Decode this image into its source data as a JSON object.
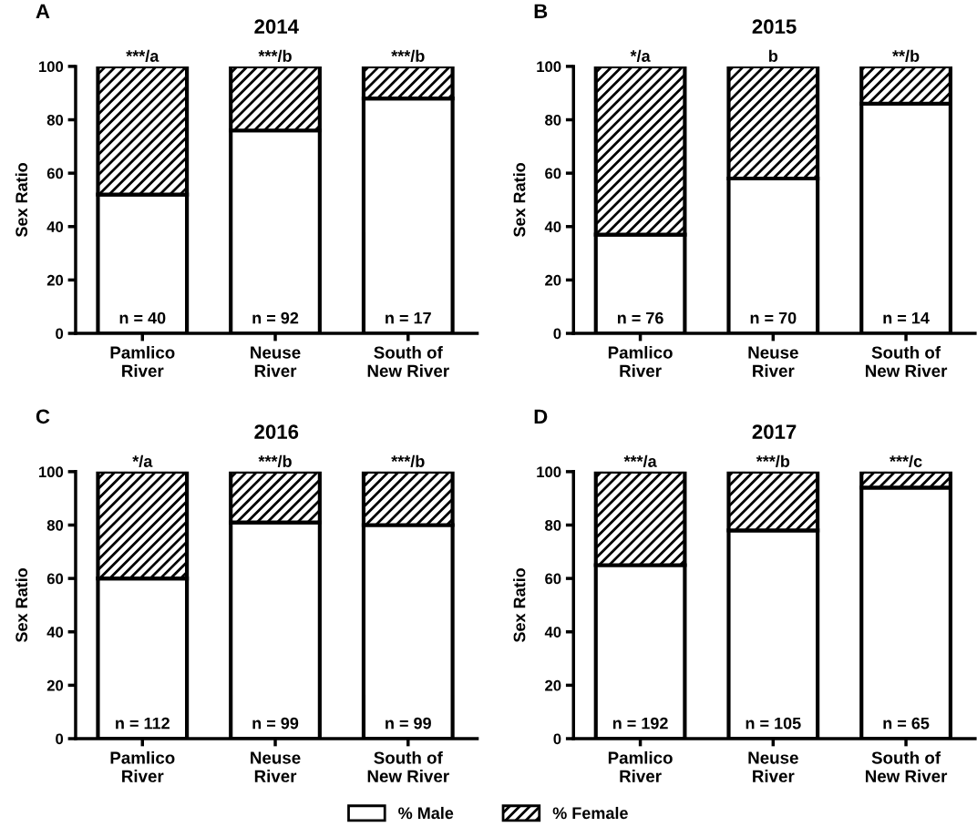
{
  "chart_data": [
    {
      "type": "bar",
      "stacked": true,
      "title": "2014",
      "ylabel": "Sex Ratio",
      "categories": [
        "Pamlico\nRiver",
        "Neuse\nRiver",
        "South of\nNew River"
      ],
      "ylim": [
        0,
        100
      ],
      "yticks": [
        0,
        20,
        40,
        60,
        80,
        100
      ],
      "grid": false,
      "series": [
        {
          "color": "#ffffff",
          "values": [
            52,
            76,
            88
          ]
        },
        {
          "color": "#000000",
          "values": [
            48,
            24,
            12
          ]
        }
      ],
      "annotations": [
        "A",
        {
          "text": "***/a",
          "x": "Pamlico\nRiver",
          "y": 100
        },
        {
          "text": "***/b",
          "x": "Neuse\nRiver",
          "y": 100
        },
        {
          "text": "***/b",
          "x": "South of\nNew River",
          "y": 100
        },
        {
          "text": "n = 40",
          "x": "Pamlico\nRiver",
          "y": 0
        },
        {
          "text": "n = 92",
          "x": "Neuse\nRiver",
          "y": 0
        },
        {
          "text": "n = 17",
          "x": "South of\nNew River",
          "y": 0
        }
      ]
    },
    {
      "type": "bar",
      "stacked": true,
      "title": "2015",
      "ylabel": "Sex Ratio",
      "categories": [
        "Pamlico\nRiver",
        "Neuse\nRiver",
        "South of\nNew River"
      ],
      "ylim": [
        0,
        100
      ],
      "yticks": [
        0,
        20,
        40,
        60,
        80,
        100
      ],
      "grid": false,
      "series": [
        {
          "color": "#ffffff",
          "values": [
            37,
            58,
            86
          ]
        },
        {
          "color": "#000000",
          "values": [
            63,
            42,
            14
          ]
        }
      ],
      "annotations": [
        "B",
        {
          "text": "*/a",
          "x": "Pamlico\nRiver",
          "y": 100
        },
        {
          "text": "b",
          "x": "Neuse\nRiver",
          "y": 100
        },
        {
          "text": "**/b",
          "x": "South of\nNew River",
          "y": 100
        },
        {
          "text": "n = 76",
          "x": "Pamlico\nRiver",
          "y": 0
        },
        {
          "text": "n = 70",
          "x": "Neuse\nRiver",
          "y": 0
        },
        {
          "text": "n = 14",
          "x": "South of\nNew River",
          "y": 0
        }
      ]
    },
    {
      "type": "bar",
      "stacked": true,
      "title": "2016",
      "ylabel": "Sex Ratio",
      "categories": [
        "Pamlico\nRiver",
        "Neuse\nRiver",
        "South of\nNew River"
      ],
      "ylim": [
        0,
        100
      ],
      "yticks": [
        0,
        20,
        40,
        60,
        80,
        100
      ],
      "grid": false,
      "series": [
        {
          "color": "#ffffff",
          "values": [
            60,
            81,
            80
          ]
        },
        {
          "color": "#000000",
          "values": [
            40,
            19,
            20
          ]
        }
      ],
      "annotations": [
        "C",
        {
          "text": "*/a",
          "x": "Pamlico\nRiver",
          "y": 100
        },
        {
          "text": "***/b",
          "x": "Neuse\nRiver",
          "y": 100
        },
        {
          "text": "***/b",
          "x": "South of\nNew River",
          "y": 100
        },
        {
          "text": "n = 112",
          "x": "Pamlico\nRiver",
          "y": 0
        },
        {
          "text": "n = 99",
          "x": "Neuse\nRiver",
          "y": 0
        },
        {
          "text": "n = 99",
          "x": "South of\nNew River",
          "y": 0
        }
      ]
    },
    {
      "type": "bar",
      "stacked": true,
      "title": "2017",
      "ylabel": "Sex Ratio",
      "categories": [
        "Pamlico\nRiver",
        "Neuse\nRiver",
        "South of\nNew River"
      ],
      "ylim": [
        0,
        100
      ],
      "yticks": [
        0,
        20,
        40,
        60,
        80,
        100
      ],
      "grid": false,
      "legend": "bottom",
      "series": [
        {
          "name": "% Male",
          "color": "#ffffff",
          "values": [
            65,
            78,
            94
          ]
        },
        {
          "name": "% Female",
          "color": "#000000",
          "values": [
            35,
            22,
            6
          ]
        }
      ],
      "annotations": [
        "D",
        {
          "text": "***/a",
          "x": "Pamlico\nRiver",
          "y": 100
        },
        {
          "text": "***/b",
          "x": "Neuse\nRiver",
          "y": 100
        },
        {
          "text": "***/c",
          "x": "South of\nNew River",
          "y": 100
        },
        {
          "text": "n = 192",
          "x": "Pamlico\nRiver",
          "y": 0
        },
        {
          "text": "n = 105",
          "x": "Neuse\nRiver",
          "y": 0
        },
        {
          "text": "n = 65",
          "x": "South of\nNew River",
          "y": 0
        }
      ]
    }
  ]
}
